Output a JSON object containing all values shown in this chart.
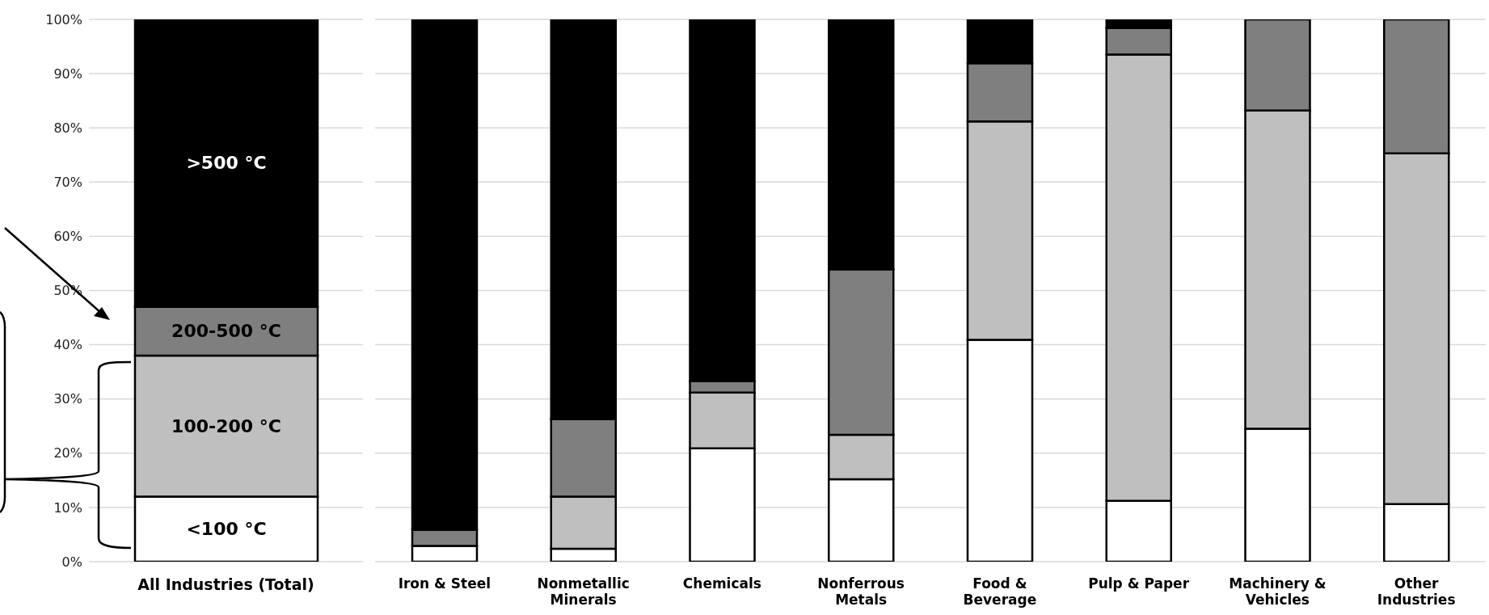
{
  "chart_data": [
    {
      "type": "bar",
      "stacked": true,
      "categories": [
        "All Industries (Total)"
      ],
      "ylim": [
        0,
        100
      ],
      "yticks": [
        {
          "value": 0,
          "label": "0%"
        },
        {
          "value": 10,
          "label": "10%"
        },
        {
          "value": 20,
          "label": "20%"
        },
        {
          "value": 30,
          "label": "30%"
        },
        {
          "value": 40,
          "label": "40%"
        },
        {
          "value": 50,
          "label": "50%"
        },
        {
          "value": 60,
          "label": "60%"
        },
        {
          "value": 70,
          "label": "70%"
        },
        {
          "value": 80,
          "label": "80%"
        },
        {
          "value": 90,
          "label": "90%"
        },
        {
          "value": 100,
          "label": "100%"
        }
      ],
      "grid": "y",
      "series": [
        {
          "name": "<100 °C",
          "color": "#ffffff",
          "values": [
            12
          ]
        },
        {
          "name": "100-200 °C",
          "color": "#bfbfbf",
          "values": [
            26
          ]
        },
        {
          "name": "200-500 °C",
          "color": "#7f7f7f",
          "values": [
            9
          ]
        },
        {
          "name": ">500 °C",
          "color": "#000000",
          "values": [
            53
          ]
        }
      ]
    },
    {
      "type": "bar",
      "stacked": true,
      "categories": [
        "Iron & Steel",
        "Nonmetallic Minerals",
        "Chemicals",
        "Nonferrous Metals",
        "Food & Beverage",
        "Pulp & Paper",
        "Machinery & Vehicles",
        "Other Industries"
      ],
      "ylim": [
        0,
        100
      ],
      "yticks": [
        0,
        10,
        20,
        30,
        40,
        50,
        60,
        70,
        80,
        90,
        100
      ],
      "grid": "y",
      "tick_labels": "x",
      "series": [
        {
          "color": "#ffffff",
          "values": [
            2.9,
            2.4,
            20.9,
            15.2,
            40.9,
            11.2,
            24.5,
            10.6
          ]
        },
        {
          "color": "#bfbfbf",
          "values": [
            0,
            9.6,
            10.3,
            8.2,
            40.3,
            82.3,
            58.7,
            64.7
          ]
        },
        {
          "color": "#7f7f7f",
          "values": [
            3,
            14.3,
            2.1,
            30.5,
            10.7,
            4.9,
            16.8,
            24.7
          ]
        },
        {
          "color": "#000000",
          "values": [
            94.1,
            73.7,
            66.7,
            46.1,
            8.1,
            1.6,
            0,
            0
          ]
        }
      ]
    }
  ]
}
